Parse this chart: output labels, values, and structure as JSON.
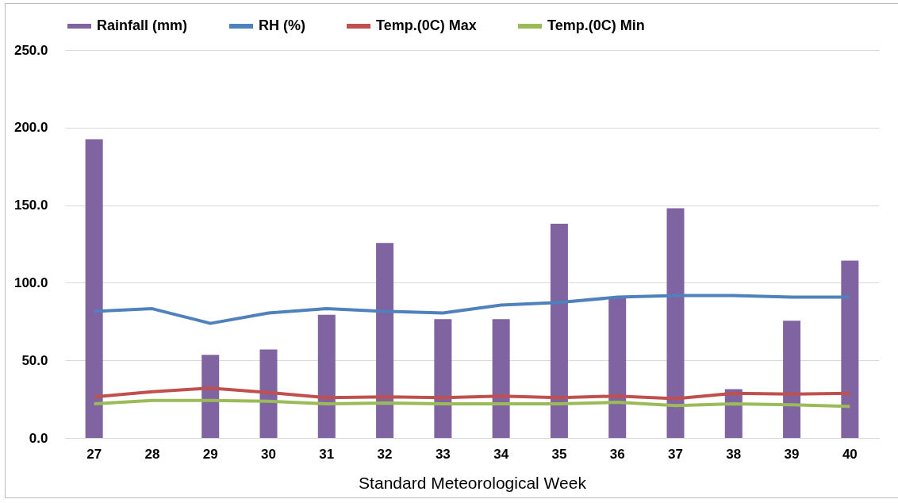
{
  "chart_data": {
    "type": "bar",
    "xlabel": "Standard Meteorological Week",
    "categories": [
      "27",
      "28",
      "29",
      "30",
      "31",
      "32",
      "33",
      "34",
      "35",
      "36",
      "37",
      "38",
      "39",
      "40"
    ],
    "series": [
      {
        "name": "Rainfall (mm)",
        "color": "#8064a2",
        "values": [
          192.5,
          0,
          53.5,
          57,
          79.4,
          125.6,
          76.6,
          76.6,
          138,
          91,
          148,
          31.5,
          75.5,
          114.3
        ]
      },
      {
        "name": "RH (%)",
        "type": "line",
        "color": "#4f81bd",
        "values": [
          81.6,
          83.3,
          73.8,
          80.5,
          83.3,
          81.6,
          80.5,
          85.6,
          87.3,
          90.7,
          91.8,
          91.8,
          90.7,
          90.7
        ]
      },
      {
        "name": "Temp.(0C) Max",
        "type": "line",
        "color": "#c0504d",
        "values": [
          26.5,
          29.8,
          32.1,
          29.3,
          25.9,
          26.5,
          25.9,
          27,
          25.9,
          27,
          25.3,
          28.7,
          28.2,
          28.7
        ]
      },
      {
        "name": "Temp.(0C) Min",
        "type": "line",
        "color": "#9bbb59",
        "values": [
          22,
          24.2,
          24.2,
          23.6,
          22,
          22.5,
          22,
          22,
          22,
          23,
          20.8,
          22,
          21.4,
          20.3
        ]
      }
    ],
    "ylim": [
      0,
      250
    ],
    "yticks": [
      {
        "value": 0,
        "label": "0.0"
      },
      {
        "value": 50,
        "label": "50.0"
      },
      {
        "value": 100,
        "label": "100.0"
      },
      {
        "value": 150,
        "label": "150.0"
      },
      {
        "value": 200,
        "label": "200.0"
      },
      {
        "value": 250,
        "label": "250.0"
      }
    ],
    "grid": "y",
    "legend": "top"
  }
}
